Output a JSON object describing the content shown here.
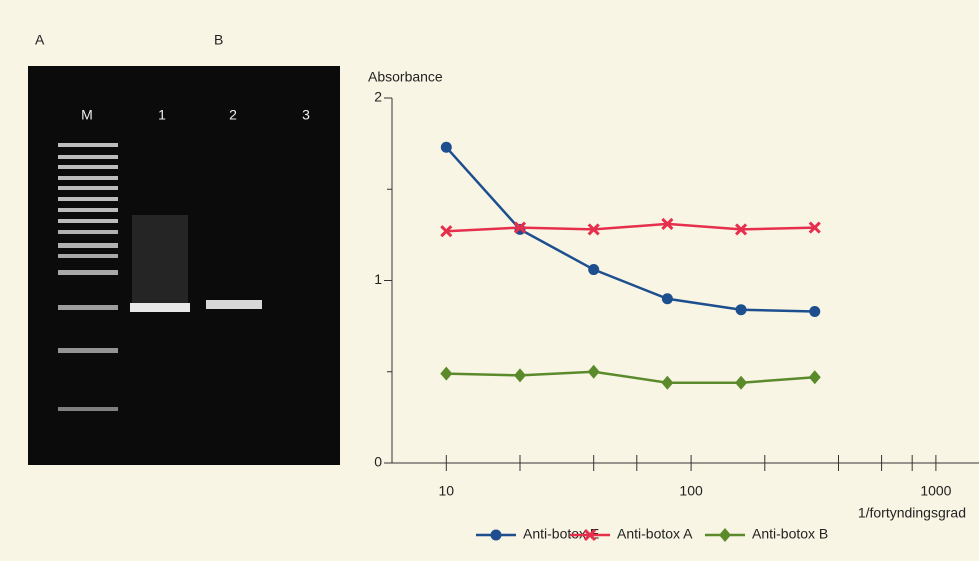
{
  "panels": [
    "A",
    "B"
  ],
  "gel": {
    "lanes": [
      "M",
      "1",
      "2",
      "3"
    ]
  },
  "chart_data": {
    "type": "line",
    "y_label": "Absorbance",
    "x_label": "1/fortyndingsgrad",
    "x": [
      10,
      20,
      40,
      80,
      160,
      320
    ],
    "xscale": "log",
    "xlim": [
      6,
      1500
    ],
    "xticks": [
      10,
      100,
      1000
    ],
    "xminorticks": [
      20,
      40,
      60,
      200,
      400,
      600,
      800
    ],
    "ylim": [
      0,
      2
    ],
    "yticks": [
      0,
      1,
      2
    ],
    "yminorticks": [
      0.5,
      1.5
    ],
    "legend": "bottom",
    "series": [
      {
        "name": "Anti-botox E",
        "color": "#1d4f8f",
        "marker": "circle",
        "values": [
          1.73,
          1.28,
          1.06,
          0.9,
          0.84,
          0.83
        ]
      },
      {
        "name": "Anti-botox A",
        "color": "#e62e4d",
        "marker": "cross",
        "values": [
          1.27,
          1.29,
          1.28,
          1.31,
          1.28,
          1.29
        ]
      },
      {
        "name": "Anti-botox B",
        "color": "#5b8a2b",
        "marker": "diamond",
        "values": [
          0.49,
          0.48,
          0.5,
          0.44,
          0.44,
          0.47
        ]
      }
    ]
  }
}
